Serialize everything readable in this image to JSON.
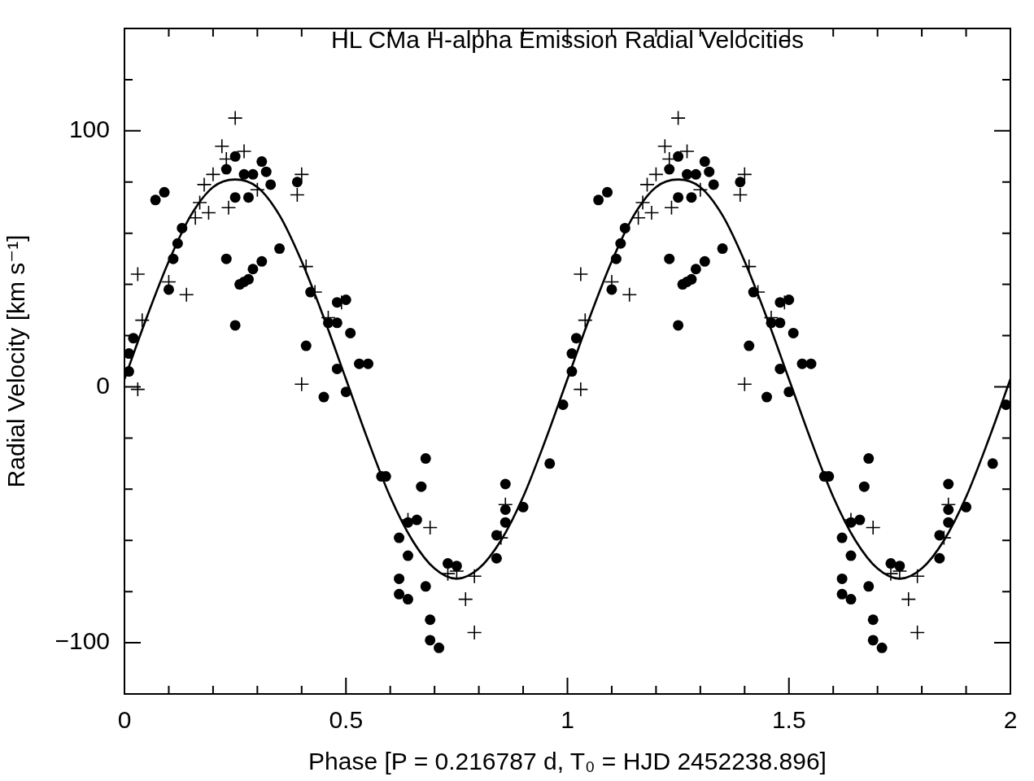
{
  "chart_data": {
    "type": "scatter",
    "title": "HL CMa H-alpha Emission Radial Velocities",
    "xlabel": "Phase [P = 0.216787 d, T₀ = HJD 2452238.896]",
    "ylabel": "Radial Velocity [km s⁻¹]",
    "xlim": [
      0,
      2
    ],
    "ylim": [
      -120,
      140
    ],
    "xticks": [
      0,
      {
        "value": 0.1,
        "label": null
      },
      {
        "value": 0.2,
        "label": null
      },
      {
        "value": 0.3,
        "label": null
      },
      {
        "value": 0.4,
        "label": null
      },
      0.5,
      {
        "value": 0.6,
        "label": null
      },
      {
        "value": 0.7,
        "label": null
      },
      {
        "value": 0.8,
        "label": null
      },
      {
        "value": 0.9,
        "label": null
      },
      1,
      {
        "value": 1.1,
        "label": null
      },
      {
        "value": 1.2,
        "label": null
      },
      {
        "value": 1.3,
        "label": null
      },
      {
        "value": 1.4,
        "label": null
      },
      1.5,
      {
        "value": 1.6,
        "label": null
      },
      {
        "value": 1.7,
        "label": null
      },
      {
        "value": 1.8,
        "label": null
      },
      {
        "value": 1.9,
        "label": null
      },
      2
    ],
    "yticks": [
      {
        "value": -120,
        "label": null
      },
      {
        "value": -100,
        "label": "−100"
      },
      {
        "value": -80,
        "label": null
      },
      {
        "value": -60,
        "label": null
      },
      {
        "value": -40,
        "label": null
      },
      {
        "value": -20,
        "label": null
      },
      0,
      {
        "value": 20,
        "label": null
      },
      {
        "value": 40,
        "label": null
      },
      {
        "value": 60,
        "label": null
      },
      {
        "value": 80,
        "label": null
      },
      100,
      {
        "value": 120,
        "label": null
      },
      {
        "value": 140,
        "label": null
      }
    ],
    "series": [
      {
        "type": "scatter",
        "marker": "circle",
        "color": "#000000",
        "x": [
          0.01,
          0.01,
          0.02,
          0.07,
          0.09,
          0.1,
          0.11,
          0.12,
          0.13,
          0.23,
          0.25,
          0.27,
          0.29,
          0.31,
          0.32,
          0.33,
          0.25,
          0.28,
          0.39,
          0.35,
          0.23,
          0.31,
          0.29,
          0.28,
          0.27,
          0.26,
          0.25,
          0.42,
          0.41,
          0.46,
          0.48,
          0.48,
          0.5,
          0.51,
          0.53,
          0.55,
          0.48,
          0.45,
          0.5,
          0.58,
          0.59,
          0.68,
          0.67,
          0.96,
          0.86,
          0.9,
          0.86,
          0.66,
          0.64,
          0.86,
          0.62,
          0.84,
          0.84,
          0.64,
          0.73,
          0.75,
          0.62,
          0.68,
          0.62,
          0.64,
          0.69,
          0.69,
          0.71,
          0.99,
          1.01,
          1.01,
          1.02,
          1.07,
          1.09,
          1.1,
          1.11,
          1.12,
          1.13,
          1.23,
          1.25,
          1.27,
          1.29,
          1.31,
          1.32,
          1.33,
          1.25,
          1.28,
          1.39,
          1.35,
          1.23,
          1.31,
          1.29,
          1.28,
          1.27,
          1.26,
          1.25,
          1.42,
          1.41,
          1.46,
          1.48,
          1.48,
          1.5,
          1.51,
          1.53,
          1.55,
          1.48,
          1.45,
          1.5,
          1.58,
          1.59,
          1.68,
          1.67,
          1.96,
          1.86,
          1.9,
          1.86,
          1.66,
          1.64,
          1.86,
          1.62,
          1.84,
          1.84,
          1.64,
          1.73,
          1.75,
          1.62,
          1.68,
          1.62,
          1.64,
          1.69,
          1.69,
          1.71,
          1.99
        ],
        "values": [
          6,
          13,
          19,
          73,
          76,
          38,
          50,
          56,
          62,
          85,
          90,
          83,
          83,
          88,
          84,
          79,
          74,
          74,
          80,
          54,
          50,
          49,
          46,
          42,
          41,
          40,
          24,
          37,
          16,
          25,
          25,
          33,
          34,
          21,
          9,
          9,
          7,
          -4,
          -2,
          -35,
          -35,
          -28,
          -39,
          -30,
          -38,
          -47,
          -48,
          -52,
          -53,
          -53,
          -59,
          -58,
          -67,
          -66,
          -69,
          -70,
          -75,
          -78,
          -81,
          -83,
          -91,
          -99,
          -102,
          -7,
          6,
          13,
          19,
          73,
          76,
          38,
          50,
          56,
          62,
          85,
          90,
          83,
          83,
          88,
          84,
          79,
          74,
          74,
          80,
          54,
          50,
          49,
          46,
          42,
          41,
          40,
          24,
          37,
          16,
          25,
          25,
          33,
          34,
          21,
          9,
          9,
          7,
          -4,
          -2,
          -35,
          -35,
          -28,
          -39,
          -30,
          -38,
          -47,
          -48,
          -52,
          -53,
          -53,
          -59,
          -58,
          -67,
          -66,
          -69,
          -70,
          -75,
          -78,
          -81,
          -83,
          -91,
          -99,
          -102,
          -7
        ]
      },
      {
        "type": "scatter",
        "marker": "cross",
        "color": "#000000",
        "x": [
          0.25,
          0.22,
          0.27,
          0.23,
          0.2,
          0.18,
          0.4,
          0.39,
          0.3,
          0.17,
          0.19,
          0.16,
          0.235,
          0.03,
          0.1,
          0.14,
          0.04,
          0.41,
          0.43,
          0.46,
          0.4,
          0.03,
          0.49,
          0.64,
          0.69,
          0.86,
          0.85,
          0.73,
          0.75,
          0.79,
          0.77,
          0.79,
          1.25,
          1.22,
          1.27,
          1.23,
          1.2,
          1.18,
          1.4,
          1.39,
          1.3,
          1.17,
          1.19,
          1.16,
          1.235,
          1.03,
          1.1,
          1.14,
          1.04,
          1.41,
          1.43,
          1.46,
          1.4,
          1.03,
          1.49,
          1.64,
          1.69,
          1.86,
          1.85,
          1.73,
          1.75,
          1.79,
          1.77,
          1.79
        ],
        "values": [
          105,
          94,
          92,
          89,
          83,
          79,
          83,
          75,
          77,
          72,
          68,
          66,
          70,
          44,
          41,
          36,
          26,
          47,
          37,
          27,
          1,
          -1,
          33,
          -52,
          -55,
          -46,
          -59,
          -73,
          -72,
          -74,
          -83,
          -96,
          105,
          94,
          92,
          89,
          83,
          79,
          83,
          75,
          77,
          72,
          68,
          66,
          70,
          44,
          41,
          36,
          26,
          47,
          37,
          27,
          1,
          -1,
          33,
          -52,
          -55,
          -46,
          -59,
          -73,
          -72,
          -74,
          -83,
          -96
        ]
      },
      {
        "type": "line",
        "marker": "none",
        "line_style": "solid",
        "color": "#000000",
        "x": [
          0,
          0.05,
          0.1,
          0.15,
          0.2,
          0.25,
          0.3,
          0.35,
          0.4,
          0.45,
          0.5,
          0.55,
          0.6,
          0.65,
          0.7,
          0.75,
          0.8,
          0.85,
          0.9,
          0.95,
          1,
          1.05,
          1.1,
          1.15,
          1.2,
          1.25,
          1.3,
          1.35,
          1.4,
          1.45,
          1.5,
          1.55,
          1.6,
          1.65,
          1.7,
          1.75,
          1.8,
          1.85,
          1.9,
          1.95,
          2
        ],
        "values": [
          3,
          27,
          49,
          67,
          78,
          81,
          78,
          67,
          49,
          27,
          3,
          -21,
          -43,
          -60,
          -71,
          -75,
          -71,
          -60,
          -43,
          -21,
          3,
          27,
          49,
          67,
          78,
          81,
          78,
          67,
          49,
          27,
          3,
          -21,
          -43,
          -60,
          -71,
          -75,
          -71,
          -60,
          -43,
          -21,
          3
        ]
      }
    ]
  }
}
